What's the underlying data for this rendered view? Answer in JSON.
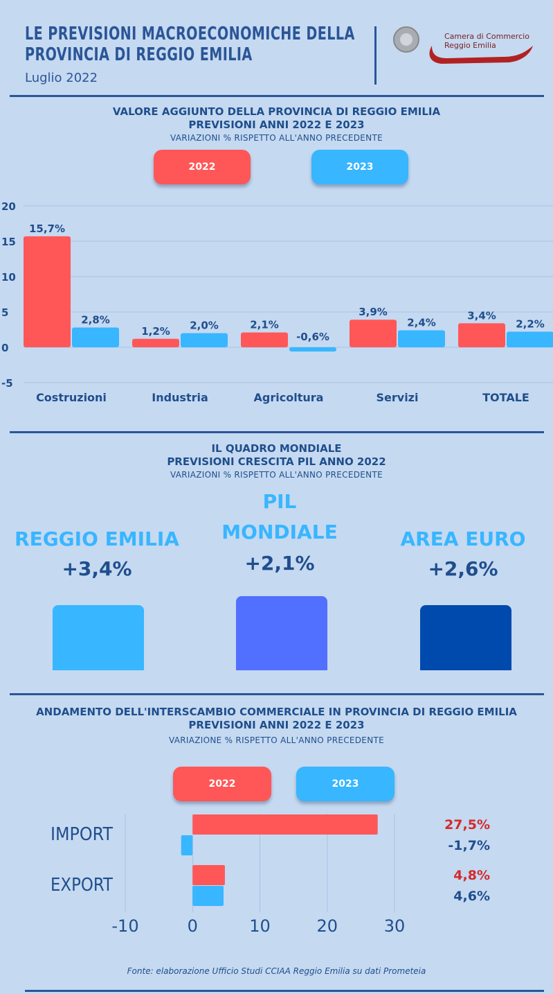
{
  "header": {
    "title_line1": "LE PREVISIONI MACROECONOMICHE DELLA",
    "title_line2": "PROVINCIA DI REGGIO EMILIA",
    "date": "Luglio  2022",
    "brand_line1": "Camera di Commercio",
    "brand_line2": "Reggio Emilia"
  },
  "section1": {
    "title_line1": "VALORE AGGIUNTO DELLA PROVINCIA DI REGGIO EMILIA",
    "title_line2": "PREVISIONI ANNI 2022 E 2023",
    "subtitle": "VARIAZIONI % RISPETTO ALL'ANNO PRECEDENTE",
    "legend_2022": "2022",
    "legend_2023": "2023"
  },
  "section2": {
    "title_line1": "IL QUADRO MONDIALE",
    "title_line2": "PREVISIONI CRESCITA PIL ANNO 2022",
    "subtitle": "VARIAZIONI % RISPETTO ALL'ANNO PRECEDENTE",
    "items": [
      {
        "label": "REGGIO EMILIA",
        "value": "+3,4%",
        "color": "#38b6ff"
      },
      {
        "label_line1": "PIL",
        "label_line2": "MONDIALE",
        "value": "+2,1%",
        "color": "#5170ff"
      },
      {
        "label": "AREA EURO",
        "value": "+2,6%",
        "color": "#004aad"
      }
    ]
  },
  "section3": {
    "title_line1": "ANDAMENTO DELL'INTERSCAMBIO COMMERCIALE IN PROVINCIA DI REGGIO EMILIA",
    "title_line2": "PREVISIONI ANNI 2022 E 2023",
    "subtitle": "VARIAZIONE % RISPETTO ALL'ANNO PRECEDENTE",
    "legend_2022": "2022",
    "legend_2023": "2023"
  },
  "footer": "Fonte: elaborazione Ufficio Studi CCIAA Reggio Emilia su dati Prometeia",
  "colors": {
    "c2022": "#ff5757",
    "c2023": "#38b6ff",
    "text": "#1f4e8c",
    "red_text": "#d42a2a"
  },
  "chart_data": [
    {
      "type": "bar",
      "categories": [
        "Costruzioni",
        "Industria",
        "Agricoltura",
        "Servizi",
        "TOTALE"
      ],
      "series": [
        {
          "name": "2022",
          "values": [
            15.7,
            1.2,
            2.1,
            3.9,
            3.4
          ],
          "labels": [
            "15,7%",
            "1,2%",
            "2,1%",
            "3,9%",
            "3,4%"
          ]
        },
        {
          "name": "2023",
          "values": [
            2.8,
            2.0,
            -0.6,
            2.4,
            2.2
          ],
          "labels": [
            "2,8%",
            "2,0%",
            "-0,6%",
            "2,4%",
            "2,2%"
          ]
        }
      ],
      "yticks": [
        "20",
        "15",
        "10",
        "5",
        "0",
        "-5"
      ],
      "ylim": [
        -5,
        20
      ],
      "grid": true
    },
    {
      "type": "bar",
      "orientation": "horizontal",
      "categories": [
        "IMPORT",
        "EXPORT"
      ],
      "series": [
        {
          "name": "2022",
          "values": [
            27.5,
            4.8
          ],
          "labels": [
            "27,5%",
            "4,8%"
          ]
        },
        {
          "name": "2023",
          "values": [
            -1.7,
            4.6
          ],
          "labels": [
            "-1,7%",
            "4,6%"
          ]
        }
      ],
      "xticks": [
        "-10",
        "0",
        "10",
        "20",
        "30"
      ],
      "xlim": [
        -10,
        30
      ],
      "grid": true
    }
  ]
}
